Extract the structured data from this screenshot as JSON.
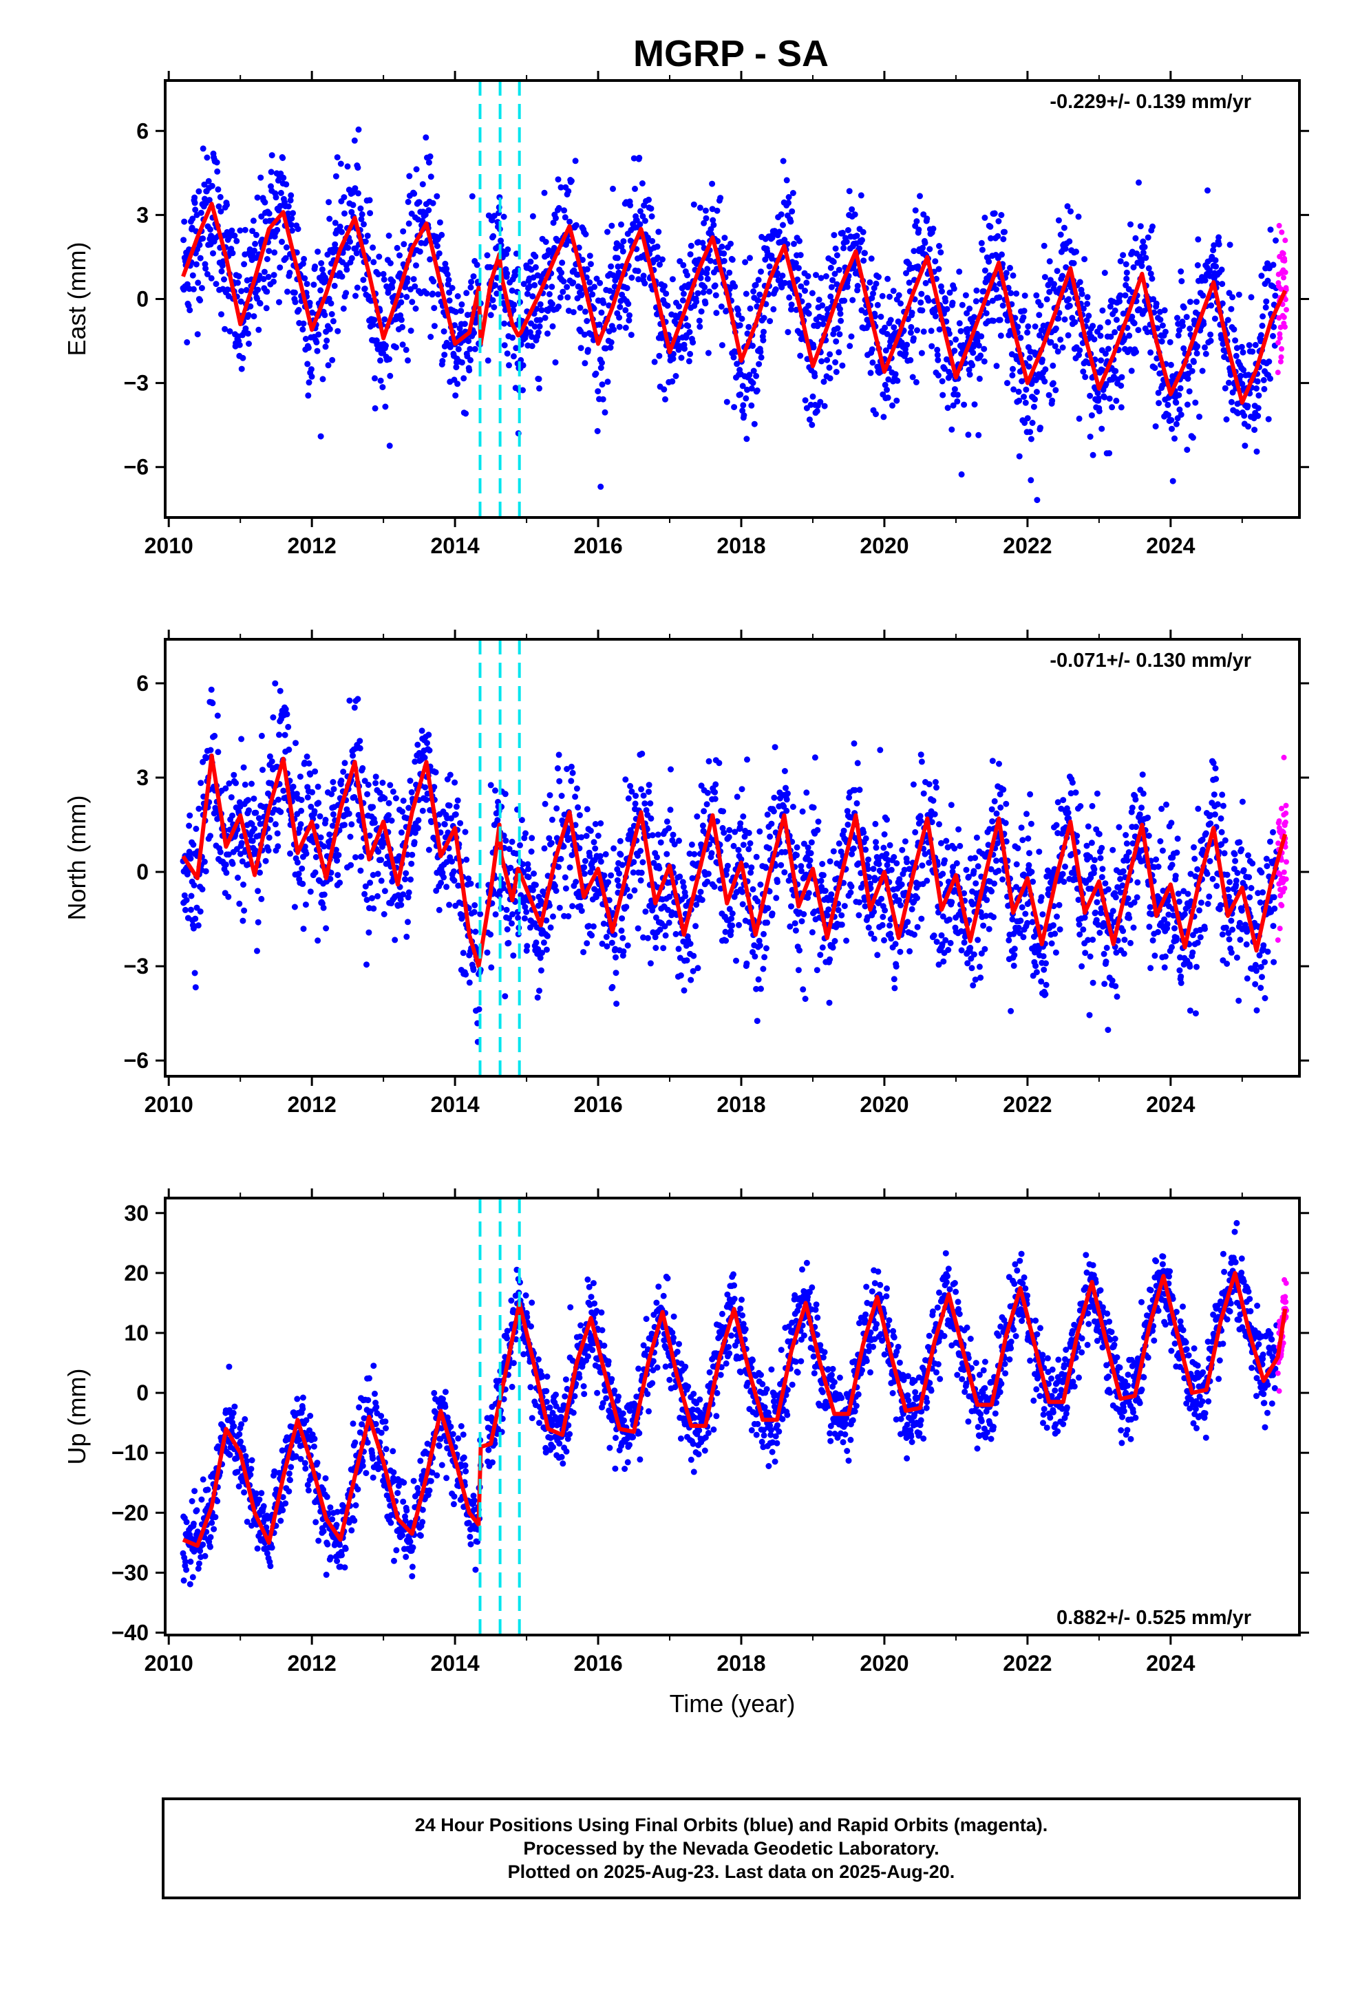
{
  "title": "MGRP - SA",
  "chart_data": [
    {
      "type": "scatter",
      "ylabel": "East (mm)",
      "xlim": [
        2009.95,
        2025.8
      ],
      "ylim": [
        -7.8,
        7.8
      ],
      "xticks": [
        2010,
        2012,
        2014,
        2016,
        2018,
        2020,
        2022,
        2024
      ],
      "yticks": [
        -6,
        -3,
        0,
        3,
        6
      ],
      "yticklabels": [
        "−6",
        "−3",
        "0",
        "3",
        "6"
      ],
      "annotation": "-0.229+/- 0.139 mm/yr",
      "annotation_position": "top-right",
      "events": [
        2014.35,
        2014.63,
        2014.9
      ],
      "fit": {
        "name": "model",
        "x": [
          2010.2,
          2010.4,
          2010.6,
          2010.8,
          2011.0,
          2011.2,
          2011.4,
          2011.6,
          2011.8,
          2012.0,
          2012.2,
          2012.4,
          2012.6,
          2012.8,
          2013.0,
          2013.2,
          2013.4,
          2013.6,
          2013.8,
          2014.0,
          2014.2,
          2014.33,
          2014.36,
          2014.5,
          2014.62,
          2014.65,
          2014.8,
          2014.88,
          2014.92,
          2015.2,
          2015.4,
          2015.6,
          2015.8,
          2016.0,
          2016.2,
          2016.4,
          2016.6,
          2016.8,
          2017.0,
          2017.2,
          2017.4,
          2017.6,
          2017.8,
          2018.0,
          2018.2,
          2018.4,
          2018.6,
          2018.8,
          2019.0,
          2019.2,
          2019.4,
          2019.6,
          2019.8,
          2020.0,
          2020.2,
          2020.4,
          2020.6,
          2020.8,
          2021.0,
          2021.2,
          2021.4,
          2021.6,
          2021.8,
          2022.0,
          2022.2,
          2022.4,
          2022.6,
          2022.8,
          2023.0,
          2023.2,
          2023.4,
          2023.6,
          2023.8,
          2024.0,
          2024.2,
          2024.4,
          2024.6,
          2024.8,
          2025.0,
          2025.2,
          2025.4,
          2025.6
        ],
        "y": [
          0.8,
          2.2,
          3.4,
          1.5,
          -0.9,
          0.7,
          2.5,
          3.1,
          1.0,
          -1.1,
          0.2,
          1.8,
          2.9,
          0.9,
          -1.4,
          0.1,
          1.8,
          2.7,
          0.5,
          -1.6,
          -1.2,
          0.4,
          -1.6,
          0.6,
          1.6,
          0.8,
          -0.9,
          -1.3,
          -1.2,
          0.3,
          1.5,
          2.6,
          0.6,
          -1.6,
          -0.3,
          1.3,
          2.5,
          0.4,
          -1.9,
          -0.5,
          1.0,
          2.2,
          0.2,
          -2.2,
          -0.9,
          0.7,
          1.9,
          -0.1,
          -2.4,
          -1.0,
          0.5,
          1.7,
          -0.5,
          -2.6,
          -1.3,
          0.2,
          1.5,
          -0.7,
          -2.8,
          -1.5,
          -0.1,
          1.3,
          -1.0,
          -3.0,
          -1.8,
          -0.4,
          1.1,
          -1.3,
          -3.2,
          -2.0,
          -0.6,
          0.9,
          -1.5,
          -3.4,
          -2.3,
          -0.8,
          0.6,
          -1.7,
          -3.7,
          -2.5,
          -0.8,
          0.3
        ]
      }
    },
    {
      "type": "scatter",
      "ylabel": "North (mm)",
      "xlim": [
        2009.95,
        2025.8
      ],
      "ylim": [
        -6.5,
        7.4
      ],
      "xticks": [
        2010,
        2012,
        2014,
        2016,
        2018,
        2020,
        2022,
        2024
      ],
      "yticks": [
        -6,
        -3,
        0,
        3,
        6
      ],
      "yticklabels": [
        "−6",
        "−3",
        "0",
        "3",
        "6"
      ],
      "annotation": "-0.071+/- 0.130 mm/yr",
      "annotation_position": "top-right",
      "events": [
        2014.35,
        2014.63,
        2014.9
      ],
      "fit": {
        "name": "model",
        "x": [
          2010.2,
          2010.4,
          2010.6,
          2010.8,
          2011.0,
          2011.2,
          2011.4,
          2011.6,
          2011.8,
          2012.0,
          2012.2,
          2012.4,
          2012.6,
          2012.8,
          2013.0,
          2013.2,
          2013.4,
          2013.6,
          2013.8,
          2014.0,
          2014.2,
          2014.33,
          2014.36,
          2014.5,
          2014.62,
          2014.65,
          2014.8,
          2014.88,
          2014.92,
          2015.2,
          2015.4,
          2015.6,
          2015.8,
          2016.0,
          2016.2,
          2016.4,
          2016.6,
          2016.8,
          2017.0,
          2017.2,
          2017.4,
          2017.6,
          2017.8,
          2018.0,
          2018.2,
          2018.4,
          2018.6,
          2018.8,
          2019.0,
          2019.2,
          2019.4,
          2019.6,
          2019.8,
          2020.0,
          2020.2,
          2020.4,
          2020.6,
          2020.8,
          2021.0,
          2021.2,
          2021.4,
          2021.6,
          2021.8,
          2022.0,
          2022.2,
          2022.4,
          2022.6,
          2022.8,
          2023.0,
          2023.2,
          2023.4,
          2023.6,
          2023.8,
          2024.0,
          2024.2,
          2024.4,
          2024.6,
          2024.8,
          2025.0,
          2025.2,
          2025.4,
          2025.6
        ],
        "y": [
          0.5,
          -0.2,
          3.7,
          0.8,
          1.8,
          -0.1,
          2.0,
          3.6,
          0.6,
          1.6,
          -0.2,
          2.0,
          3.5,
          0.4,
          1.6,
          -0.4,
          1.9,
          3.5,
          0.5,
          1.4,
          -2.0,
          -3.0,
          -2.6,
          -0.6,
          1.5,
          0.5,
          -0.9,
          0.1,
          -0.1,
          -1.7,
          0.4,
          1.9,
          -0.8,
          0.1,
          -1.9,
          0.0,
          1.9,
          -1.0,
          0.2,
          -2.0,
          -0.1,
          1.8,
          -1.0,
          0.3,
          -2.0,
          0.0,
          1.8,
          -1.1,
          0.1,
          -2.1,
          -0.1,
          1.8,
          -1.2,
          0.0,
          -2.1,
          -0.1,
          1.7,
          -1.2,
          -0.1,
          -2.2,
          -0.2,
          1.7,
          -1.3,
          -0.2,
          -2.3,
          -0.2,
          1.6,
          -1.3,
          -0.3,
          -2.3,
          -0.3,
          1.5,
          -1.4,
          -0.4,
          -2.4,
          -0.3,
          1.4,
          -1.4,
          -0.5,
          -2.5,
          -0.4,
          1.2
        ]
      }
    },
    {
      "type": "scatter",
      "xlabel": "Time (year)",
      "ylabel": "Up (mm)",
      "xlim": [
        2009.95,
        2025.8
      ],
      "ylim": [
        -40.4,
        32.5
      ],
      "xticks": [
        2010,
        2012,
        2014,
        2016,
        2018,
        2020,
        2022,
        2024
      ],
      "yticks": [
        -40,
        -30,
        -20,
        -10,
        0,
        10,
        20,
        30
      ],
      "yticklabels": [
        "−40",
        "−30",
        "−20",
        "−10",
        "0",
        "10",
        "20",
        "30"
      ],
      "annotation": "0.882+/- 0.525 mm/yr",
      "annotation_position": "bottom-right",
      "events": [
        2014.35,
        2014.63,
        2014.9
      ],
      "fit": {
        "name": "model",
        "x": [
          2010.2,
          2010.4,
          2010.6,
          2010.8,
          2011.0,
          2011.2,
          2011.4,
          2011.6,
          2011.8,
          2012.0,
          2012.2,
          2012.4,
          2012.6,
          2012.8,
          2013.0,
          2013.2,
          2013.4,
          2013.6,
          2013.8,
          2014.0,
          2014.2,
          2014.33,
          2014.36,
          2014.5,
          2014.7,
          2014.9,
          2015.1,
          2015.3,
          2015.5,
          2015.7,
          2015.9,
          2016.1,
          2016.3,
          2016.5,
          2016.7,
          2016.9,
          2017.1,
          2017.3,
          2017.5,
          2017.7,
          2017.9,
          2018.1,
          2018.3,
          2018.5,
          2018.7,
          2018.9,
          2019.1,
          2019.3,
          2019.5,
          2019.7,
          2019.9,
          2020.1,
          2020.3,
          2020.5,
          2020.7,
          2020.9,
          2021.1,
          2021.3,
          2021.5,
          2021.7,
          2021.9,
          2022.1,
          2022.3,
          2022.5,
          2022.7,
          2022.9,
          2023.1,
          2023.3,
          2023.5,
          2023.7,
          2023.9,
          2024.1,
          2024.3,
          2024.5,
          2024.7,
          2024.9,
          2025.1,
          2025.3,
          2025.5,
          2025.6
        ],
        "y": [
          -24.5,
          -25.5,
          -19.0,
          -6.0,
          -10.0,
          -20.0,
          -25.0,
          -14.0,
          -4.5,
          -12.0,
          -21.0,
          -24.5,
          -14.0,
          -4.0,
          -11.5,
          -21.0,
          -23.5,
          -14.0,
          -3.0,
          -11.0,
          -20.0,
          -22.0,
          -9.0,
          -8.5,
          3.0,
          15.0,
          5.0,
          -6.0,
          -7.0,
          5.0,
          12.5,
          3.0,
          -6.0,
          -6.5,
          5.0,
          13.5,
          3.0,
          -5.5,
          -5.5,
          6.0,
          14.0,
          4.0,
          -4.5,
          -4.5,
          7.0,
          15.0,
          5.0,
          -3.5,
          -3.5,
          8.0,
          16.0,
          6.0,
          -3.0,
          -2.5,
          8.5,
          16.5,
          7.0,
          -2.0,
          -2.0,
          9.5,
          17.5,
          8.0,
          -1.5,
          -1.5,
          10.0,
          18.5,
          8.5,
          -1.0,
          -0.5,
          11.0,
          19.5,
          9.5,
          0.0,
          0.5,
          12.0,
          20.0,
          10.0,
          2.0,
          6.0,
          14.0
        ]
      }
    }
  ],
  "legend": {
    "line1": "24 Hour Positions Using Final Orbits (blue) and Rapid Orbits (magenta).",
    "line2": "Processed by the Nevada Geodetic Laboratory.",
    "line3": "Plotted on 2025-Aug-23. Last data on 2025-Aug-20."
  },
  "colors": {
    "final": "#0000ff",
    "rapid": "#ff00ff",
    "fit": "#ff0000",
    "event": "#00e5ee",
    "frame": "#000000"
  }
}
